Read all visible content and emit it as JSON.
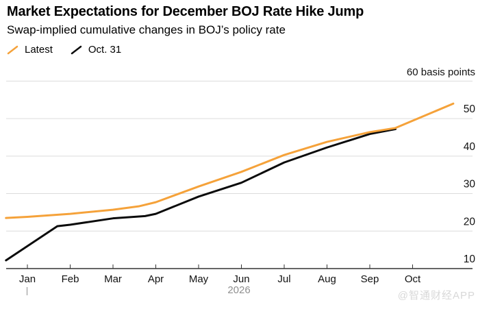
{
  "header": {
    "title": "Market Expectations for December BOJ Rate Hike Jump",
    "subtitle": "Swap-implied cumulative changes in BOJ’s policy rate"
  },
  "legend": {
    "items": [
      {
        "label": "Latest",
        "color": "#F5A23A"
      },
      {
        "label": "Oct. 31",
        "color": "#0B0B0B"
      }
    ]
  },
  "watermark": "@智通财经APP",
  "chart_data": {
    "type": "line",
    "title": "Market Expectations for December BOJ Rate Hike Jump",
    "subtitle": "Swap-implied cumulative changes in BOJ’s policy rate",
    "xlabel": "",
    "ylabel": "basis points",
    "grid": "horizontal",
    "legend_position": "top-left",
    "x_axis": {
      "tick_labels": [
        "Jan",
        "Feb",
        "Mar",
        "Apr",
        "May",
        "Jun",
        "Jul",
        "Aug",
        "Sep",
        "Oct"
      ],
      "year_label": "2026"
    },
    "y_axis": {
      "ticks": [
        10,
        20,
        30,
        40,
        50,
        60
      ],
      "range": [
        10,
        60
      ],
      "top_label": "60 basis points"
    },
    "series": [
      {
        "name": "Latest",
        "color": "#F5A23A",
        "points": [
          [
            -0.5,
            23.5
          ],
          [
            0,
            23.8
          ],
          [
            1,
            24.6
          ],
          [
            2,
            25.7
          ],
          [
            2.6,
            26.6
          ],
          [
            3,
            27.7
          ],
          [
            4,
            31.9
          ],
          [
            5,
            35.8
          ],
          [
            6,
            40.3
          ],
          [
            7,
            43.8
          ],
          [
            8,
            46.4
          ],
          [
            8.6,
            47.5
          ],
          [
            9.95,
            54.0
          ]
        ]
      },
      {
        "name": "Oct. 31",
        "color": "#0B0B0B",
        "points": [
          [
            -0.5,
            12.2
          ],
          [
            0.7,
            21.3
          ],
          [
            1,
            21.7
          ],
          [
            2,
            23.4
          ],
          [
            2.75,
            24.0
          ],
          [
            3,
            24.6
          ],
          [
            4,
            29.2
          ],
          [
            5,
            32.9
          ],
          [
            6,
            38.3
          ],
          [
            7,
            42.3
          ],
          [
            8,
            45.9
          ],
          [
            8.6,
            47.2
          ]
        ]
      }
    ]
  }
}
